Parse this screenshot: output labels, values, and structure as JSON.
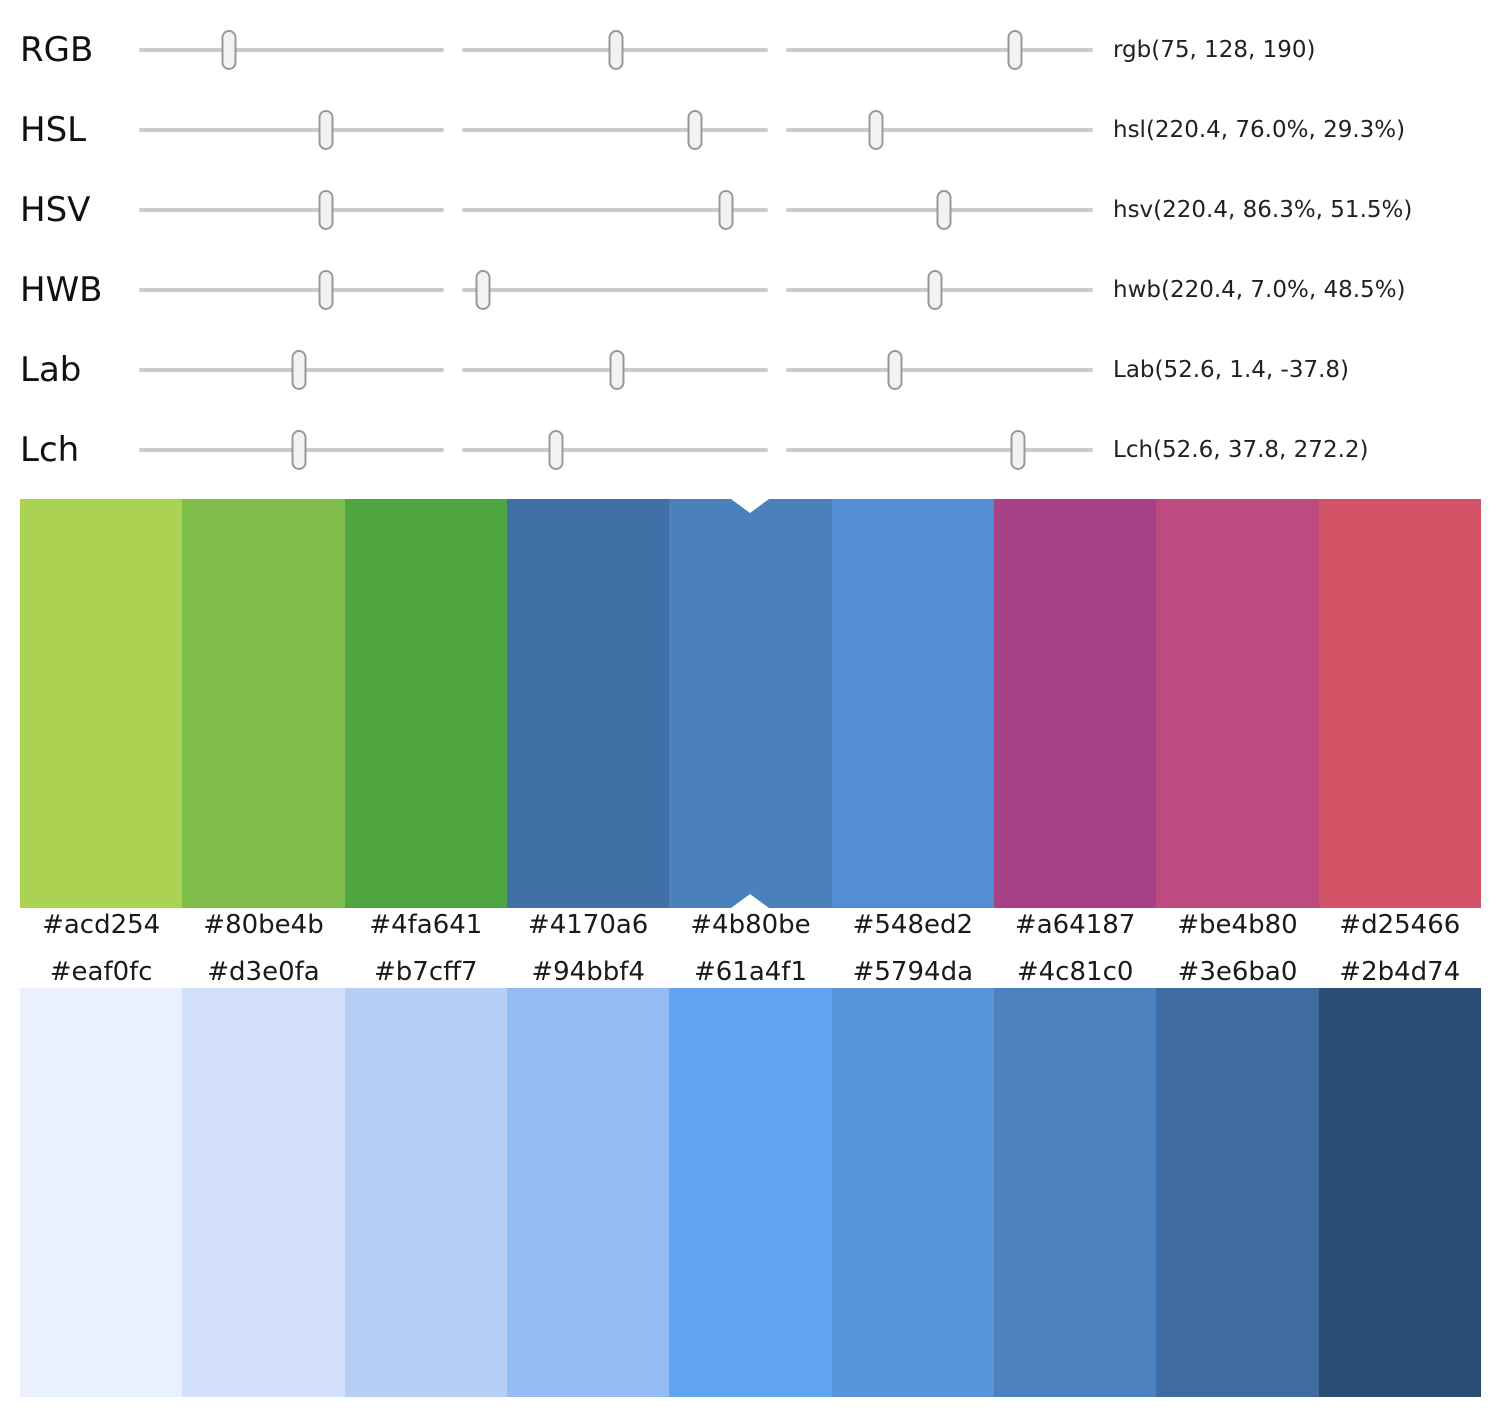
{
  "current_color": "#4b80be",
  "sliders": {
    "rows": [
      {
        "label": "RGB",
        "value_label": "rgb(75, 128, 190)",
        "thumbs": [
          0.294,
          0.502,
          0.745
        ]
      },
      {
        "label": "HSL",
        "value_label": "hsl(220.4, 76.0%, 29.3%)",
        "thumbs": [
          0.612,
          0.76,
          0.293
        ]
      },
      {
        "label": "HSV",
        "value_label": "hsv(220.4, 86.3%, 51.5%)",
        "thumbs": [
          0.612,
          0.863,
          0.515
        ]
      },
      {
        "label": "HWB",
        "value_label": "hwb(220.4, 7.0%, 48.5%)",
        "thumbs": [
          0.612,
          0.07,
          0.485
        ]
      },
      {
        "label": "Lab",
        "value_label": "Lab(52.6, 1.4, -37.8)",
        "thumbs": [
          0.526,
          0.507,
          0.354
        ]
      },
      {
        "label": "Lch",
        "value_label": "Lch(52.6, 37.8, 272.2)",
        "thumbs": [
          0.526,
          0.308,
          0.756
        ]
      }
    ]
  },
  "palettes": [
    {
      "name": "hue-scale",
      "selected_index": 4,
      "swatches": [
        "#acd254",
        "#80be4b",
        "#4fa641",
        "#4170a6",
        "#4b80be",
        "#548ed2",
        "#a64187",
        "#be4b80",
        "#d25466"
      ]
    },
    {
      "name": "lightness-scale",
      "selected_index": -1,
      "swatches": [
        "#eaf0fc",
        "#d3e0fa",
        "#b7cff7",
        "#94bbf4",
        "#61a4f1",
        "#5794da",
        "#4c81c0",
        "#3e6ba0",
        "#2b4d74"
      ]
    }
  ],
  "ui_colors": {
    "track": "#cbcbcb",
    "thumb_fill": "#f2f2f2",
    "thumb_border": "#999999",
    "selection_marker": "#ffffff",
    "background": "#ffffff"
  }
}
